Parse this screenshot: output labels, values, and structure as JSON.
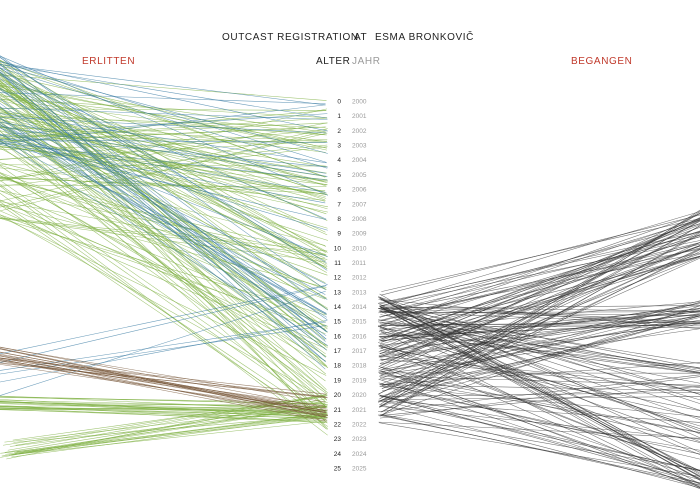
{
  "header": {
    "title": "OUTCAST REGISTRATION",
    "at": "AT",
    "person": "ESMA BRONKOVIČ",
    "left_label": "ERLITTEN",
    "right_label": "BEGANGEN",
    "age_label": "ALTER",
    "year_label": "JAHR"
  },
  "colors": {
    "accent_red": "#c0392b",
    "muted_gray": "#9a9a9a",
    "green_line": "#7fb043",
    "blue_line": "#3b7ca4",
    "brown_line": "#7a5a3c",
    "gray_line": "#333333"
  },
  "chart_data": {
    "type": "parallel",
    "axis": {
      "ages": [
        "0",
        "1",
        "2",
        "3",
        "4",
        "5",
        "6",
        "7",
        "8",
        "9",
        "10",
        "11",
        "12",
        "13",
        "14",
        "15",
        "16",
        "17",
        "18",
        "19",
        "20",
        "21",
        "22",
        "23",
        "24",
        "25"
      ],
      "years": [
        "2000",
        "2001",
        "2002",
        "2003",
        "2004",
        "2005",
        "2006",
        "2007",
        "2008",
        "2009",
        "2010",
        "2011",
        "2012",
        "2013",
        "2014",
        "2015",
        "2016",
        "2017",
        "2018",
        "2019",
        "2020",
        "2021",
        "2022",
        "2023",
        "2024",
        "2025"
      ]
    },
    "series": [
      {
        "side": "left",
        "color": "green",
        "count": 190,
        "age_range": [
          0,
          23
        ],
        "concentration_ages": [
          8,
          21
        ]
      },
      {
        "side": "left",
        "color": "blue",
        "count": 55,
        "age_range": [
          0,
          19
        ]
      },
      {
        "side": "left",
        "color": "brown",
        "count": 22,
        "age_range": [
          20,
          22
        ]
      },
      {
        "side": "right",
        "color": "gray",
        "count": 170,
        "age_range": [
          13,
          22
        ]
      }
    ]
  }
}
